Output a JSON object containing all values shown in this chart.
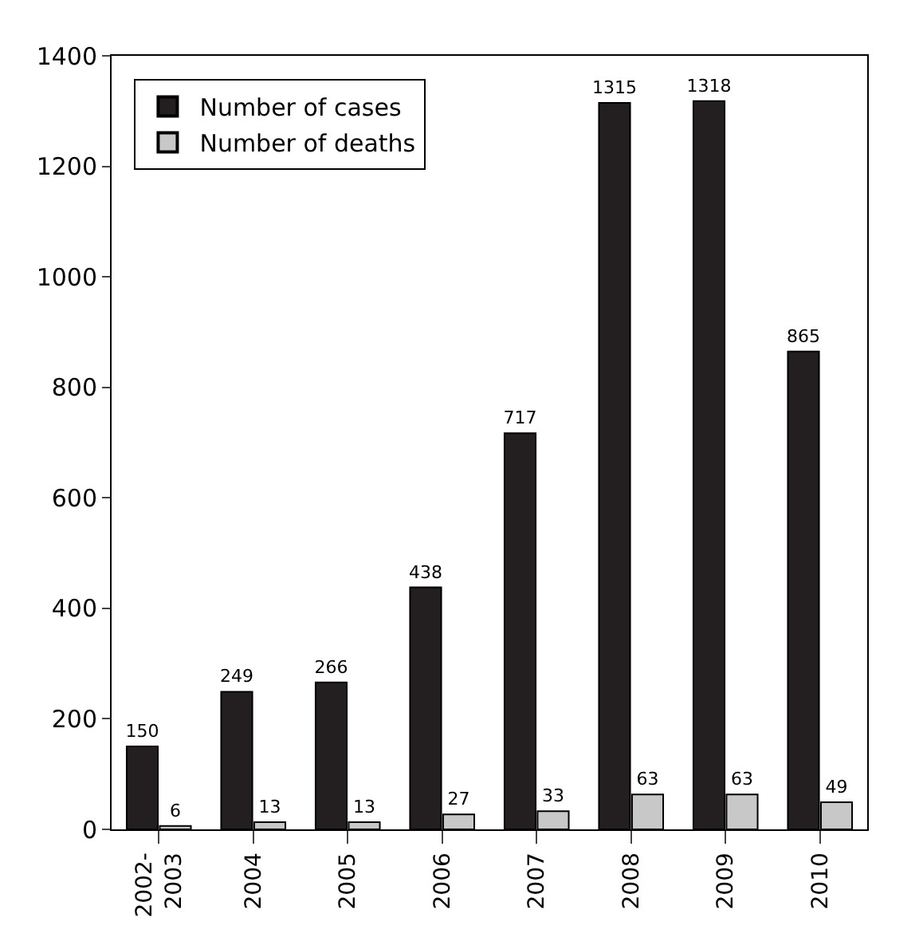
{
  "chart_data": {
    "type": "bar",
    "categories": [
      "2002-\n2003",
      "2004",
      "2005",
      "2006",
      "2007",
      "2008",
      "2009",
      "2010"
    ],
    "series": [
      {
        "name": "Number of cases",
        "color": "#231f20",
        "values": [
          150,
          249,
          266,
          438,
          717,
          1315,
          1318,
          865
        ]
      },
      {
        "name": "Number of deaths",
        "color": "#c8c8c8",
        "values": [
          6,
          13,
          13,
          27,
          33,
          63,
          63,
          49
        ]
      }
    ],
    "ylim": [
      0,
      1400
    ],
    "yticks": [
      0,
      200,
      400,
      600,
      800,
      1000,
      1200,
      1400
    ],
    "data_labels": true,
    "legend": "top left"
  }
}
